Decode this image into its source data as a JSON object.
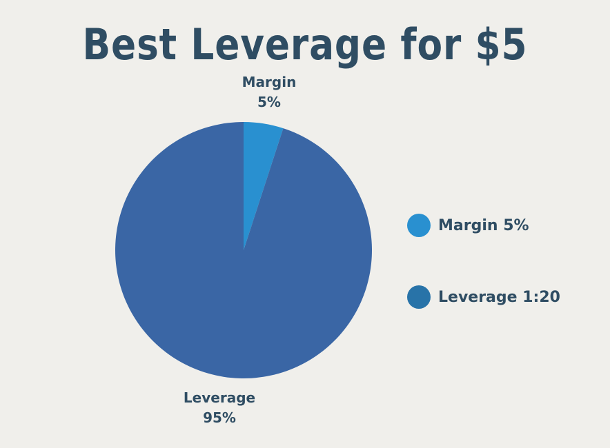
{
  "title": "Best Leverage for $5",
  "chart_data": {
    "type": "pie",
    "title": "Best Leverage for $5",
    "slices": [
      {
        "label": "Margin",
        "value": 5,
        "value_label": "5%",
        "color": "#2990d0"
      },
      {
        "label": "Leverage",
        "value": 95,
        "value_label": "95%",
        "color": "#3a66a5"
      }
    ],
    "legend": {
      "placement": "right",
      "entries": [
        {
          "label": "Margin 5%",
          "color": "#2990d0"
        },
        {
          "label": "Leverage 1:20",
          "color": "#2873a8"
        }
      ]
    }
  }
}
